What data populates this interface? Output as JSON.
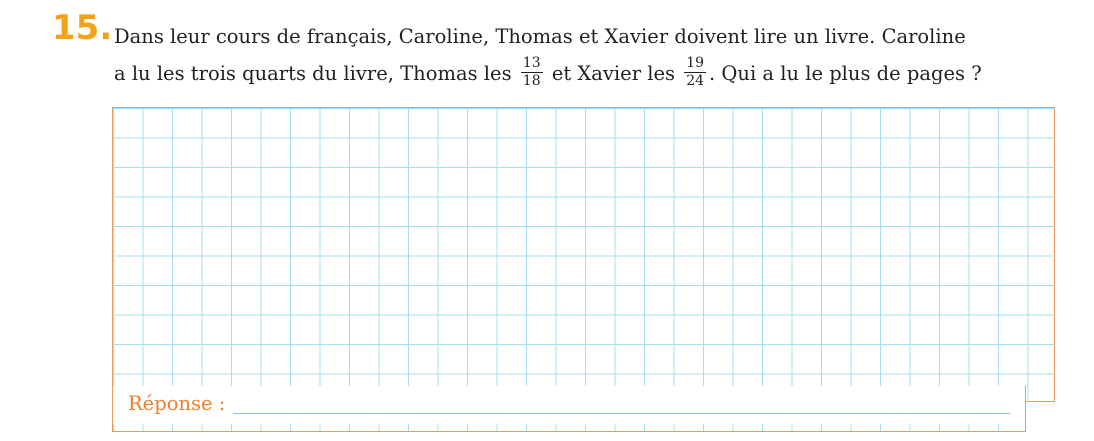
{
  "exercise": {
    "number": "15.",
    "line1": "Dans leur cours de français, Caroline, Thomas et Xavier doivent lire un livre. Caroline",
    "line2_part1": "a lu les trois quarts du livre, Thomas les",
    "fraction_thomas": {
      "numerator": "13",
      "denominator": "18"
    },
    "line2_part2": "et Xavier les",
    "fraction_xavier": {
      "numerator": "19",
      "denominator": "24"
    },
    "line2_part3": ". Qui a lu le plus de pages ?"
  },
  "answer": {
    "label": "Réponse :"
  },
  "colors": {
    "number": "#f5a21b",
    "label": "#ef7d2a",
    "frame": "#ee9a5b",
    "grid": "#a9dcf1"
  }
}
